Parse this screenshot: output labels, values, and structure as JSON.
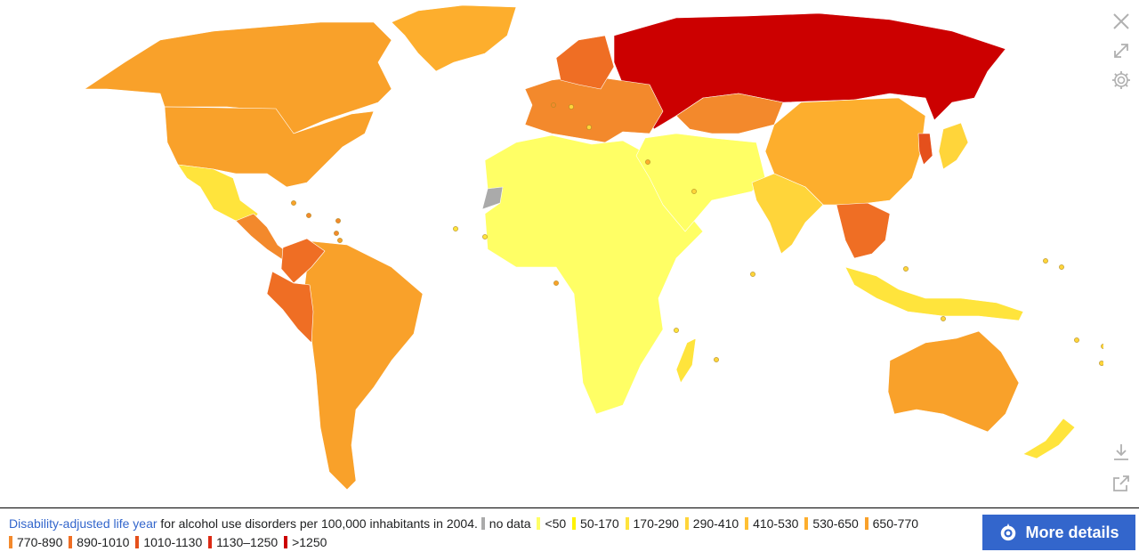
{
  "caption": {
    "link_text": "Disability-adjusted life year",
    "text": "for alcohol use disorders per 100,000 inhabitants in 2004."
  },
  "legend": [
    {
      "label": "no data",
      "color": "#aaaaaa"
    },
    {
      "label": "<50",
      "color": "#ffff65"
    },
    {
      "label": "50-170",
      "color": "#fff200"
    },
    {
      "label": "170-290",
      "color": "#ffe43c"
    },
    {
      "label": "290-410",
      "color": "#ffd53a"
    },
    {
      "label": "410-530",
      "color": "#ffc034"
    },
    {
      "label": "530-650",
      "color": "#fdae2d"
    },
    {
      "label": "650-770",
      "color": "#f9a12a"
    },
    {
      "label": "770-890",
      "color": "#f3892c"
    },
    {
      "label": "890-1010",
      "color": "#ef6e24"
    },
    {
      "label": "1010-1130",
      "color": "#e5501c"
    },
    {
      "label": "1130–1250",
      "color": "#dc2a14"
    },
    {
      "label": ">1250",
      "color": "#cc0000"
    }
  ],
  "buttons": {
    "more_details": "More details"
  },
  "toolbar": {
    "close": "close-icon",
    "expand": "expand-icon",
    "settings": "gear-icon",
    "download": "download-icon",
    "share": "share-icon"
  },
  "regions": [
    {
      "name": "Russia",
      "bin": ">1250"
    },
    {
      "name": "Canada",
      "bin": "650-770"
    },
    {
      "name": "United States",
      "bin": "650-770"
    },
    {
      "name": "Greenland",
      "bin": "530-650"
    },
    {
      "name": "Mexico",
      "bin": "170-290"
    },
    {
      "name": "Central America",
      "bin": "770-890"
    },
    {
      "name": "South America",
      "bin": "650-770"
    },
    {
      "name": "Peru & Ecuador",
      "bin": "890-1010"
    },
    {
      "name": "Colombia",
      "bin": "890-1010"
    },
    {
      "name": "Africa",
      "bin": "<50"
    },
    {
      "name": "Western Sahara",
      "bin": "no data"
    },
    {
      "name": "Europe",
      "bin": "770-890"
    },
    {
      "name": "Scandinavia",
      "bin": "890-1010"
    },
    {
      "name": "Middle East",
      "bin": "<50"
    },
    {
      "name": "Central Asia",
      "bin": "770-890"
    },
    {
      "name": "China",
      "bin": "530-650"
    },
    {
      "name": "India",
      "bin": "290-410"
    },
    {
      "name": "Southeast Asia",
      "bin": "890-1010"
    },
    {
      "name": "Japan",
      "bin": "290-410"
    },
    {
      "name": "Korea",
      "bin": "1010-1130"
    },
    {
      "name": "Indonesia",
      "bin": "170-290"
    },
    {
      "name": "Australia",
      "bin": "650-770"
    },
    {
      "name": "New Zealand",
      "bin": "170-290"
    },
    {
      "name": "Madagascar",
      "bin": "170-290"
    }
  ]
}
